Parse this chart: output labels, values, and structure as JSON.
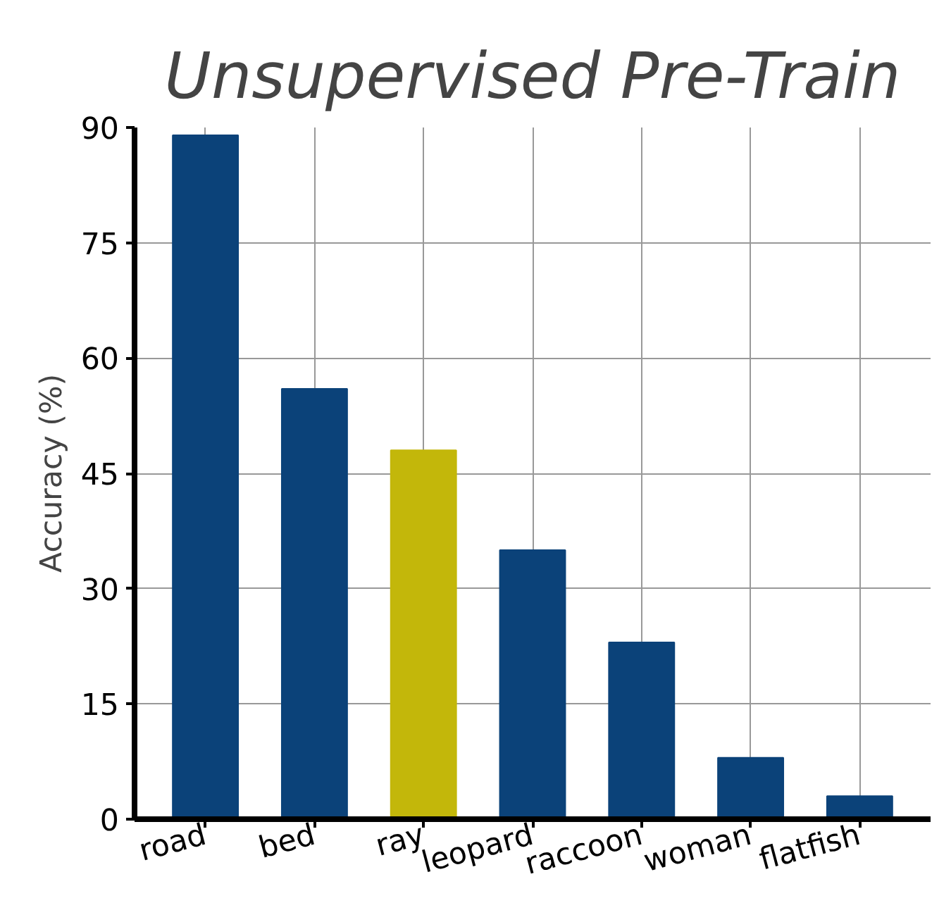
{
  "chart_data": {
    "type": "bar",
    "title": "Unsupervised Pre-Train",
    "ylabel": "Accuracy (%)",
    "categories": [
      "road",
      "bed",
      "ray",
      "leopard",
      "raccoon",
      "woman",
      "flatfish"
    ],
    "values": [
      89,
      56,
      48,
      35,
      23,
      8,
      3
    ],
    "colors": [
      "#0b4279",
      "#0b4279",
      "#c3b70a",
      "#0b4279",
      "#0b4279",
      "#0b4279",
      "#0b4279"
    ],
    "ylim": [
      0,
      90
    ],
    "yticks": [
      0,
      15,
      30,
      45,
      60,
      75,
      90
    ],
    "grid": true
  }
}
